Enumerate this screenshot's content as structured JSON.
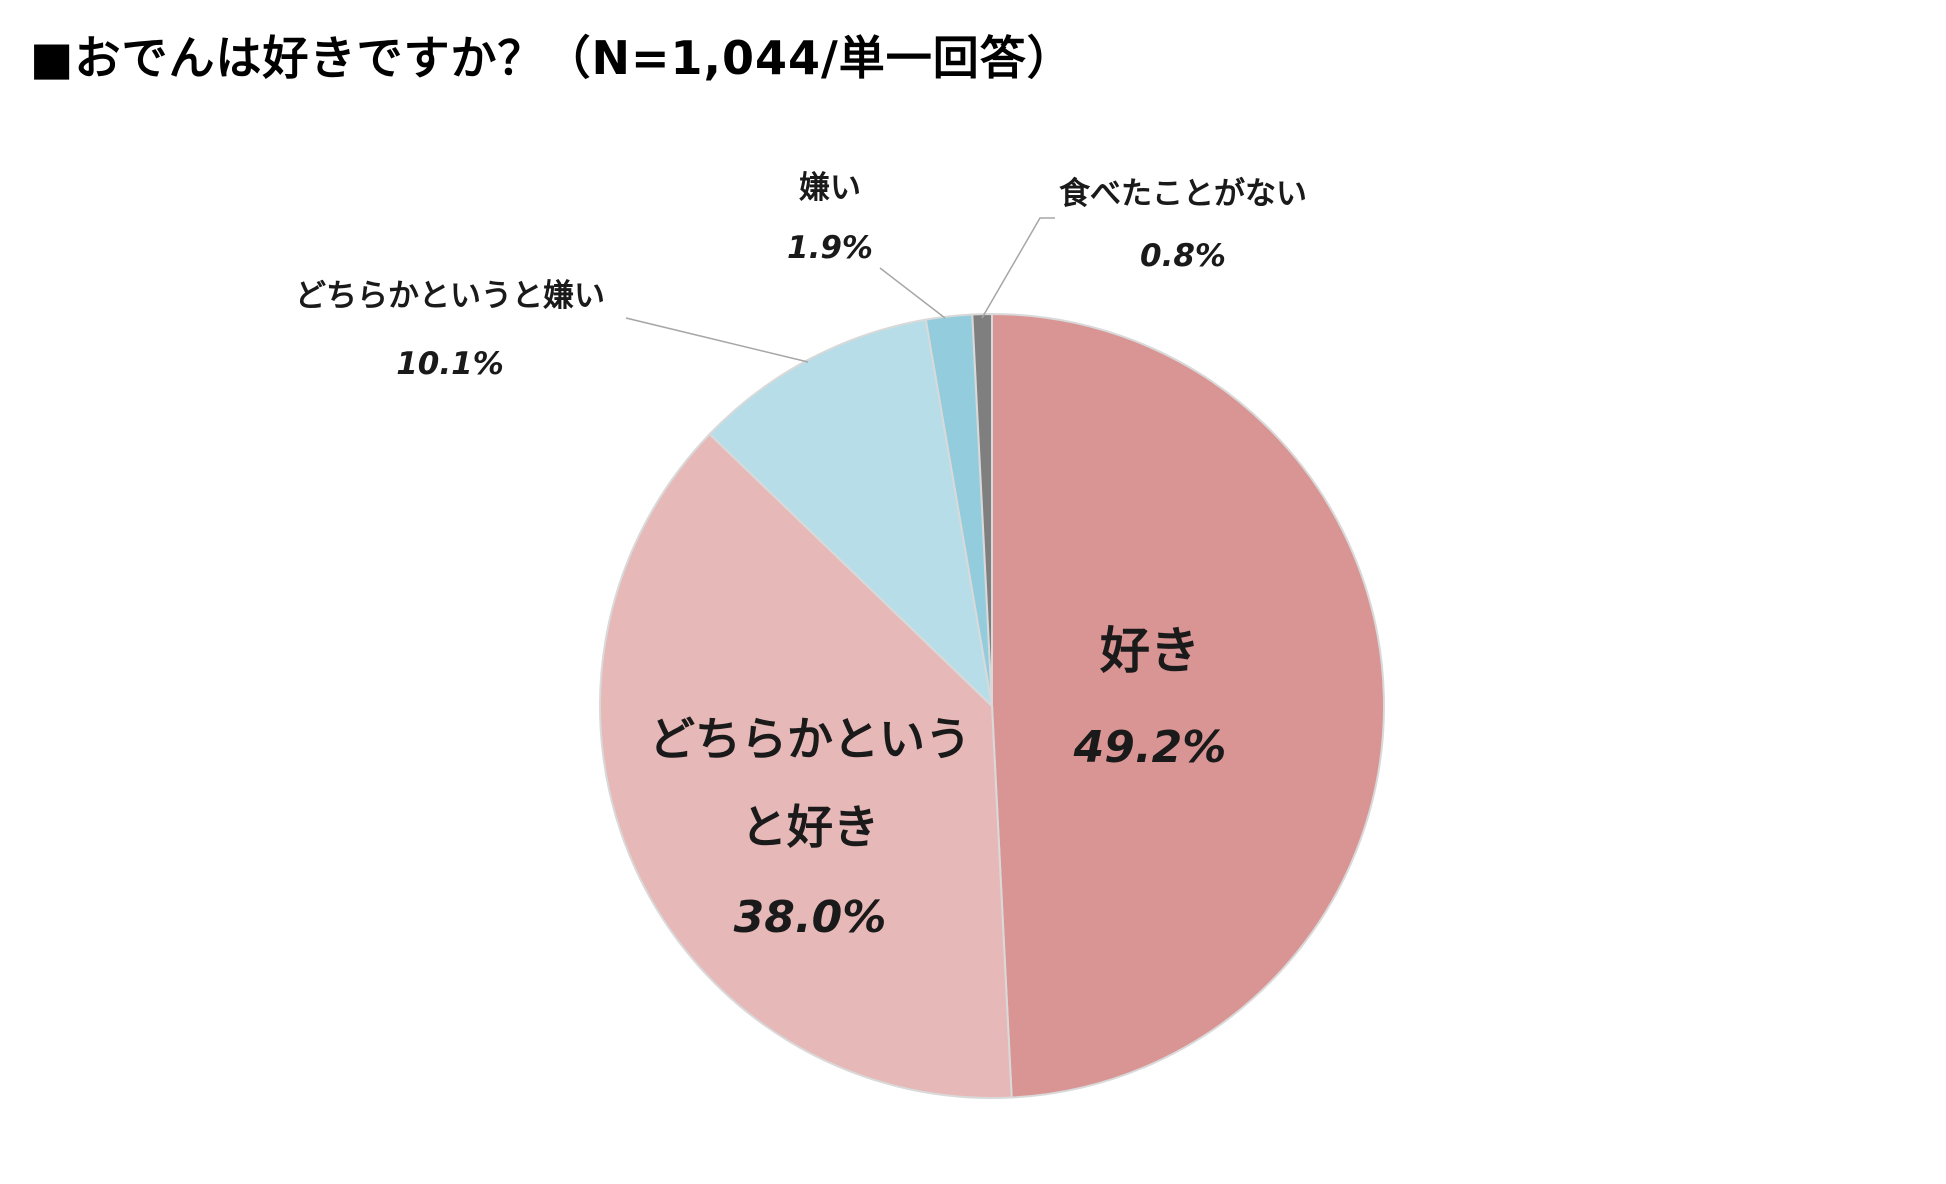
{
  "title": "■おでんは好きですか？（N=1,044/単一回答）",
  "chart_data": {
    "type": "pie",
    "title": "■おでんは好きですか？（N=1,044/単一回答）",
    "start_angle_deg": 0,
    "direction": "clockwise",
    "slices": [
      {
        "label": "好き",
        "value": 49.2,
        "value_label": "49.2%",
        "color": "#d99594",
        "label_position": "inside"
      },
      {
        "label": "どちらかというと好き",
        "label_lines": [
          "どちらかという",
          "と好き"
        ],
        "value": 38.0,
        "value_label": "38.0%",
        "color": "#e6b8b7",
        "label_position": "inside"
      },
      {
        "label": "どちらかというと嫌い",
        "value": 10.1,
        "value_label": "10.1%",
        "color": "#b7dde8",
        "label_position": "outside"
      },
      {
        "label": "嫌い",
        "value": 1.9,
        "value_label": "1.9%",
        "color": "#93cddd",
        "label_position": "outside"
      },
      {
        "label": "食べたことがない",
        "value": 0.8,
        "value_label": "0.8%",
        "color": "#7f7f7f",
        "label_position": "outside"
      }
    ],
    "slice_border_color": "#d9d9d9",
    "leader_line_color": "#a6a6a6"
  }
}
